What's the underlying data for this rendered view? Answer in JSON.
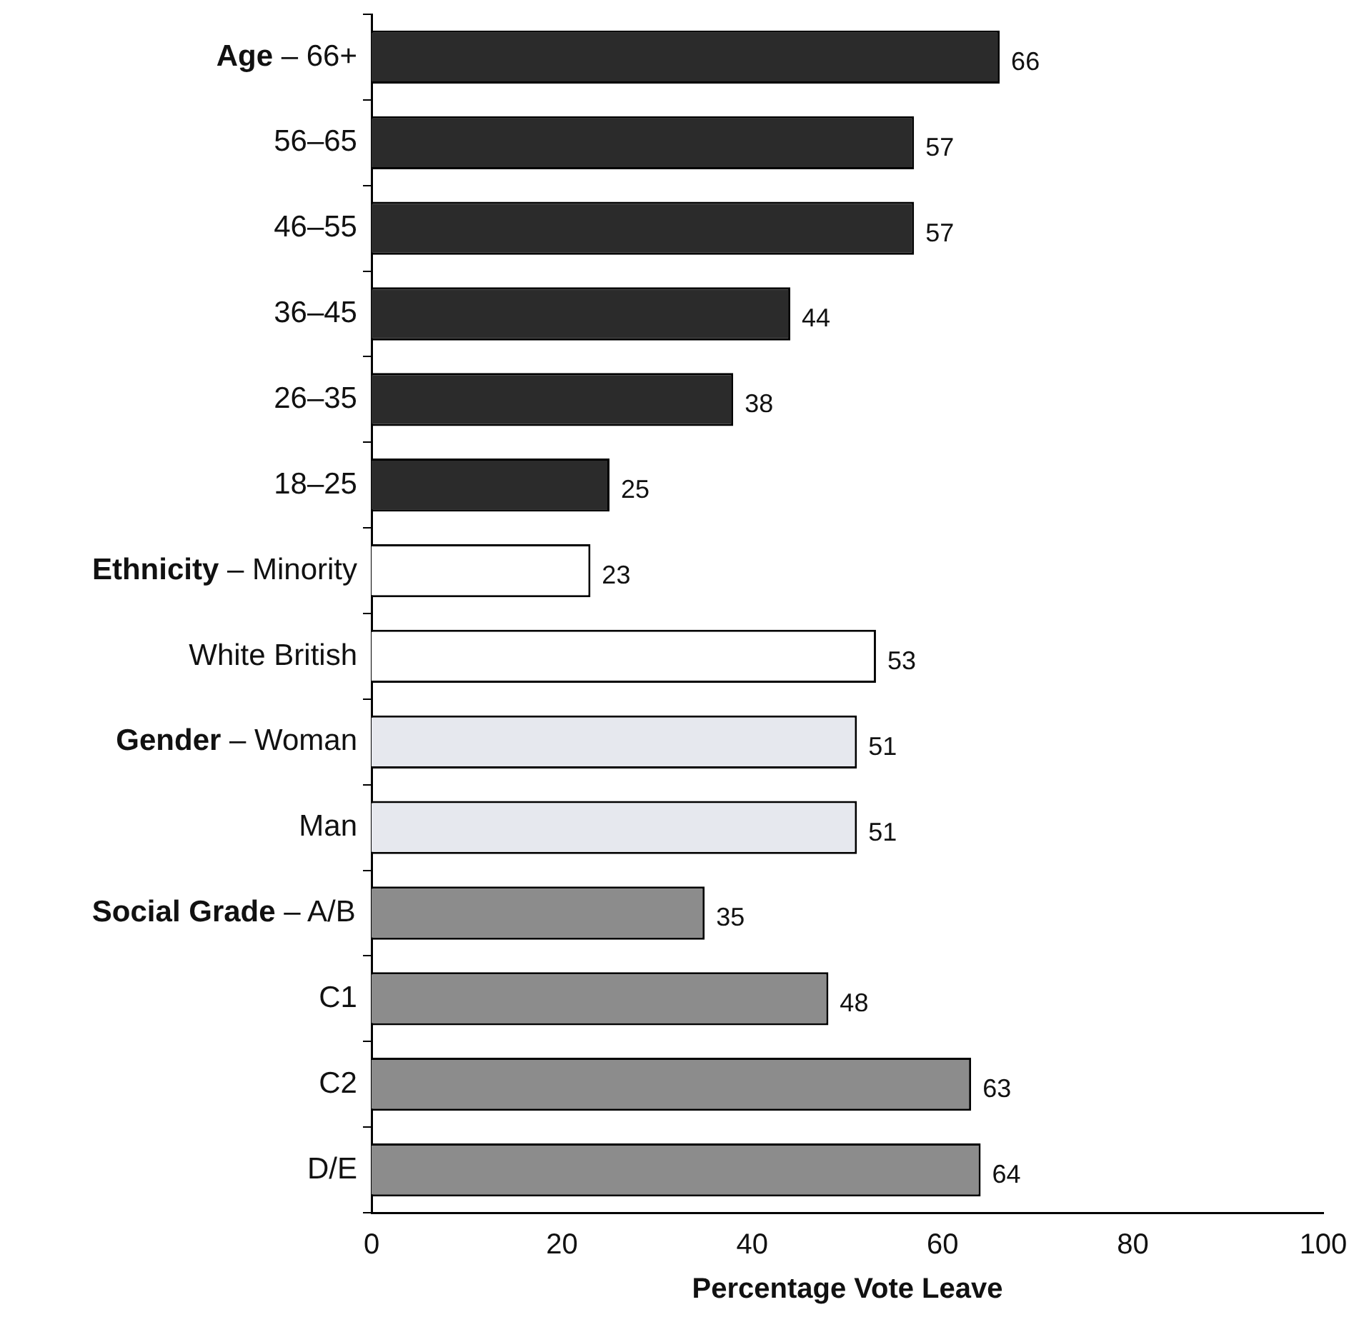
{
  "chart_data": {
    "type": "bar",
    "orientation": "horizontal",
    "xlabel": "Percentage Vote Leave",
    "categories": [
      "Age – 66+",
      "56–65",
      "46–55",
      "36–45",
      "26–35",
      "18–25",
      "Ethnicity – Minority",
      "White British",
      "Gender – Woman",
      "Man",
      "Social Grade – A/B",
      "C1",
      "C2",
      "D/E"
    ],
    "values": [
      66,
      57,
      57,
      44,
      38,
      25,
      23,
      53,
      51,
      51,
      35,
      48,
      63,
      64
    ],
    "colors": [
      "#2b2b2b",
      "#2b2b2b",
      "#2b2b2b",
      "#2b2b2b",
      "#2b2b2b",
      "#2b2b2b",
      "#ffffff",
      "#ffffff",
      "#e6e8ee",
      "#e6e8ee",
      "#8c8c8c",
      "#8c8c8c",
      "#8c8c8c",
      "#8c8c8c"
    ],
    "xlim": [
      0,
      100
    ],
    "xticks": [
      0,
      20,
      40,
      60,
      80,
      100
    ],
    "data_labels": true,
    "grid": false,
    "legend": false
  }
}
